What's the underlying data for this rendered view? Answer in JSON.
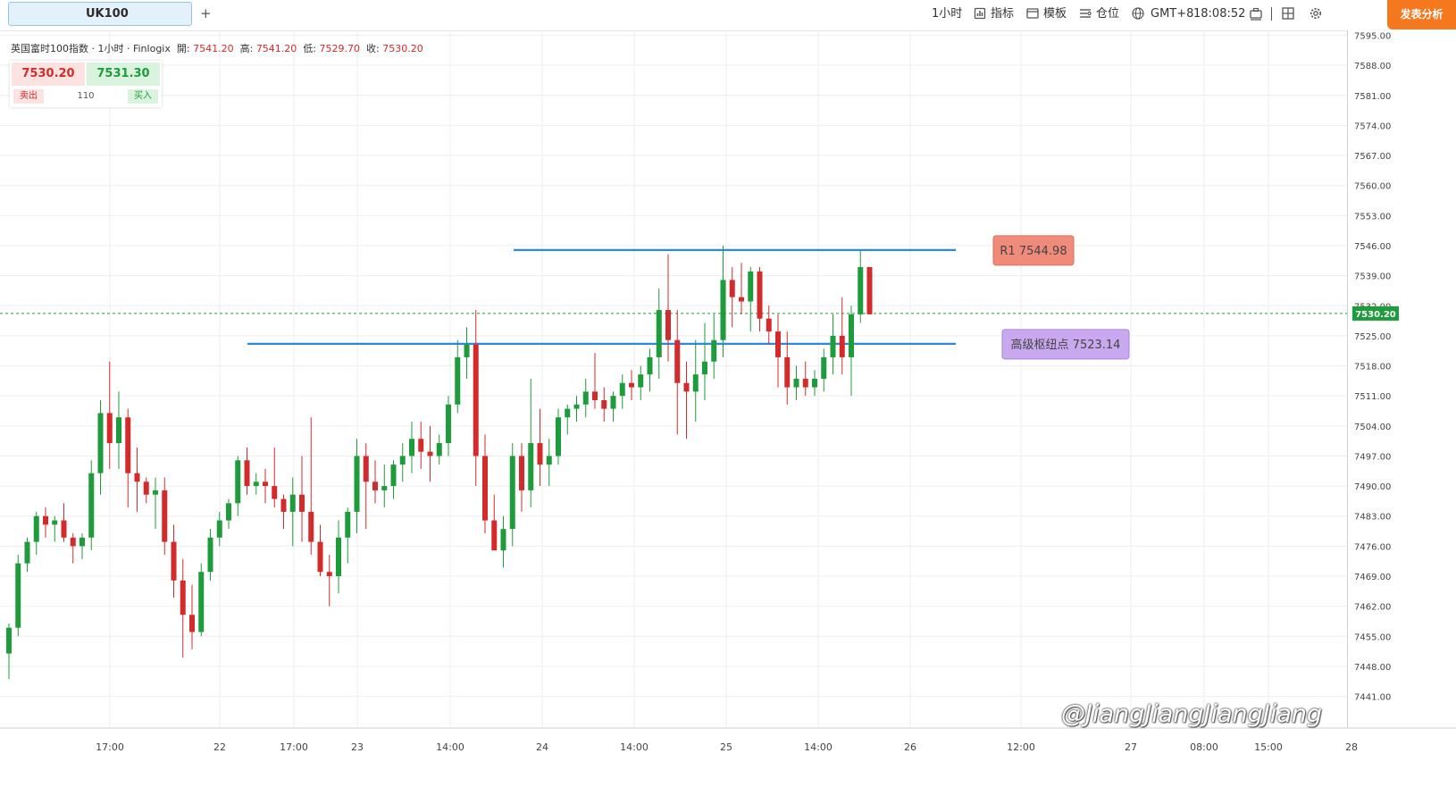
{
  "toolbar": {
    "tab_label": "UK100",
    "add_tab": "+",
    "interval": "1小时",
    "indicators": "指标",
    "templates": "模板",
    "positions": "仓位",
    "timezone": "GMT+8",
    "clock": "18:08:52",
    "publish": "发表分析"
  },
  "legend": {
    "symbol": "英国富时100指数 · 1小时 · Finlogix",
    "open_label": "開:",
    "open": "7541.20",
    "high_label": "高:",
    "high": "7541.20",
    "low_label": "低:",
    "low": "7529.70",
    "close_label": "收:",
    "close": "7530.20"
  },
  "quote": {
    "sell_price": "7530.20",
    "buy_price": "7531.30",
    "sell_label": "卖出",
    "buy_label": "买入",
    "spread": "110"
  },
  "colors": {
    "up": "#1e9b3a",
    "down": "#d32b2b",
    "level_line": "#2a8ae0",
    "r1_box": "#f08a7a",
    "pivot_box": "#c9a8f0",
    "price_tag": "#1e9b3a",
    "publish_button": "#f5781f"
  },
  "icons": [
    "chart-icon",
    "indicator-icon",
    "template-icon",
    "position-icon",
    "globe-icon",
    "screenshot-icon",
    "layout-icon",
    "gear-icon"
  ],
  "watermark": "@JiangJiangJiangJiang",
  "chart_data": {
    "type": "candlestick",
    "instrument": "UK100",
    "y_ticks": [
      "7595.00",
      "7588.00",
      "7581.00",
      "7574.00",
      "7567.00",
      "7560.00",
      "7553.00",
      "7546.00",
      "7539.00",
      "7532.00",
      "7525.00",
      "7518.00",
      "7511.00",
      "7504.00",
      "7497.00",
      "7490.00",
      "7483.00",
      "7476.00",
      "7469.00",
      "7462.00",
      "7455.00",
      "7448.00",
      "7441.00"
    ],
    "ylim": [
      7439,
      7596
    ],
    "x_labels": [
      "17:00",
      "22",
      "17:00",
      "23",
      "14:00",
      "24",
      "14:00",
      "25",
      "14:00",
      "26",
      "12:00",
      "27",
      "08:00",
      "15:00",
      "28"
    ],
    "current_price": "7530.20",
    "levels": [
      {
        "label": "R1 7544.98",
        "value": 7544.98
      },
      {
        "label": "高级枢纽点 7523.14",
        "value": 7523.14
      }
    ],
    "candles": [
      [
        7451,
        7458,
        7445,
        7457
      ],
      [
        7457,
        7474,
        7455,
        7472
      ],
      [
        7472,
        7478,
        7470,
        7477
      ],
      [
        7477,
        7484,
        7474,
        7483
      ],
      [
        7483,
        7485,
        7478,
        7481
      ],
      [
        7481,
        7483,
        7477,
        7482
      ],
      [
        7482,
        7486,
        7477,
        7478
      ],
      [
        7478,
        7479,
        7472,
        7476
      ],
      [
        7476,
        7479,
        7473,
        7478
      ],
      [
        7478,
        7496,
        7475,
        7493
      ],
      [
        7493,
        7510,
        7488,
        7507
      ],
      [
        7507,
        7519,
        7494,
        7500
      ],
      [
        7500,
        7512,
        7494,
        7506
      ],
      [
        7506,
        7508,
        7485,
        7493
      ],
      [
        7493,
        7499,
        7484,
        7491
      ],
      [
        7491,
        7492,
        7486,
        7488
      ],
      [
        7488,
        7492,
        7480,
        7489
      ],
      [
        7489,
        7492,
        7474,
        7477
      ],
      [
        7477,
        7481,
        7464,
        7468
      ],
      [
        7468,
        7473,
        7450,
        7460
      ],
      [
        7460,
        7467,
        7452,
        7456
      ],
      [
        7456,
        7472,
        7455,
        7470
      ],
      [
        7470,
        7480,
        7468,
        7478
      ],
      [
        7478,
        7484,
        7476,
        7482
      ],
      [
        7482,
        7487,
        7480,
        7486
      ],
      [
        7486,
        7497,
        7483,
        7496
      ],
      [
        7496,
        7499,
        7488,
        7490
      ],
      [
        7490,
        7493,
        7488,
        7491
      ],
      [
        7491,
        7494,
        7486,
        7490
      ],
      [
        7490,
        7499,
        7485,
        7487
      ],
      [
        7487,
        7488,
        7480,
        7484
      ],
      [
        7484,
        7492,
        7476,
        7488
      ],
      [
        7488,
        7497,
        7477,
        7484
      ],
      [
        7484,
        7506,
        7474,
        7477
      ],
      [
        7477,
        7481,
        7469,
        7470
      ],
      [
        7470,
        7474,
        7462,
        7469
      ],
      [
        7469,
        7482,
        7465,
        7478
      ],
      [
        7478,
        7485,
        7472,
        7484
      ],
      [
        7484,
        7501,
        7479,
        7497
      ],
      [
        7497,
        7500,
        7480,
        7491
      ],
      [
        7491,
        7496,
        7486,
        7489
      ],
      [
        7489,
        7495,
        7485,
        7490
      ],
      [
        7490,
        7496,
        7487,
        7495
      ],
      [
        7495,
        7500,
        7491,
        7497
      ],
      [
        7497,
        7505,
        7493,
        7501
      ],
      [
        7501,
        7505,
        7494,
        7498
      ],
      [
        7498,
        7504,
        7491,
        7497
      ],
      [
        7497,
        7502,
        7495,
        7500
      ],
      [
        7500,
        7511,
        7497,
        7509
      ],
      [
        7509,
        7524,
        7507,
        7520
      ],
      [
        7520,
        7527,
        7515,
        7523
      ],
      [
        7523,
        7531,
        7490,
        7497
      ],
      [
        7497,
        7502,
        7479,
        7482
      ],
      [
        7482,
        7488,
        7476,
        7475
      ],
      [
        7475,
        7483,
        7471,
        7480
      ],
      [
        7480,
        7500,
        7476,
        7497
      ],
      [
        7497,
        7500,
        7484,
        7489
      ],
      [
        7489,
        7515,
        7485,
        7500
      ],
      [
        7500,
        7508,
        7490,
        7495
      ],
      [
        7495,
        7501,
        7490,
        7497
      ],
      [
        7497,
        7508,
        7495,
        7506
      ],
      [
        7506,
        7509,
        7502,
        7508
      ],
      [
        7508,
        7511,
        7505,
        7509
      ],
      [
        7509,
        7515,
        7506,
        7512
      ],
      [
        7512,
        7521,
        7508,
        7510
      ],
      [
        7510,
        7513,
        7505,
        7508
      ],
      [
        7508,
        7512,
        7505,
        7511
      ],
      [
        7511,
        7516,
        7508,
        7514
      ],
      [
        7514,
        7517,
        7510,
        7513
      ],
      [
        7513,
        7518,
        7510,
        7516
      ],
      [
        7516,
        7522,
        7512,
        7520
      ],
      [
        7520,
        7536,
        7515,
        7531
      ],
      [
        7531,
        7544,
        7519,
        7524
      ],
      [
        7524,
        7531,
        7502,
        7514
      ],
      [
        7514,
        7519,
        7501,
        7512
      ],
      [
        7512,
        7524,
        7505,
        7516
      ],
      [
        7516,
        7528,
        7510,
        7519
      ],
      [
        7519,
        7530,
        7515,
        7524
      ],
      [
        7524,
        7546,
        7520,
        7538
      ],
      [
        7538,
        7541,
        7527,
        7534
      ],
      [
        7534,
        7542,
        7530,
        7533
      ],
      [
        7533,
        7541,
        7526,
        7540
      ],
      [
        7540,
        7541,
        7526,
        7529
      ],
      [
        7529,
        7532,
        7523,
        7526
      ],
      [
        7526,
        7530,
        7513,
        7520
      ],
      [
        7520,
        7526,
        7509,
        7513
      ],
      [
        7513,
        7518,
        7510,
        7515
      ],
      [
        7515,
        7519,
        7511,
        7513
      ],
      [
        7513,
        7517,
        7511,
        7515
      ],
      [
        7515,
        7522,
        7512,
        7520
      ],
      [
        7520,
        7530,
        7516,
        7525
      ],
      [
        7525,
        7534,
        7516,
        7520
      ],
      [
        7520,
        7532,
        7511,
        7530
      ],
      [
        7530,
        7545,
        7528,
        7541
      ],
      [
        7541,
        7541,
        7530,
        7530
      ]
    ]
  }
}
